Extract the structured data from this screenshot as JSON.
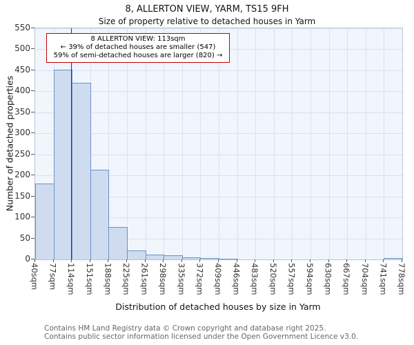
{
  "title": "8, ALLERTON VIEW, YARM, TS15 9FH",
  "subtitle": "Size of property relative to detached houses in Yarm",
  "annotation": {
    "line1": "8 ALLERTON VIEW: 113sqm",
    "line2": "← 39% of detached houses are smaller (547)",
    "line3": "59% of semi-detached houses are larger (820) →"
  },
  "footer": {
    "line1": "Contains HM Land Registry data © Crown copyright and database right 2025.",
    "line2": "Contains public sector information licensed under the Open Government Licence v3.0."
  },
  "chart_data": {
    "type": "bar",
    "title": "8, ALLERTON VIEW, YARM, TS15 9FH — Size of property relative to detached houses in Yarm",
    "xlabel": "Distribution of detached houses by size in Yarm",
    "ylabel": "Number of detached properties",
    "categories": [
      "40sqm",
      "77sqm",
      "114sqm",
      "151sqm",
      "188sqm",
      "225sqm",
      "261sqm",
      "298sqm",
      "335sqm",
      "372sqm",
      "409sqm",
      "446sqm",
      "483sqm",
      "520sqm",
      "557sqm",
      "594sqm",
      "630sqm",
      "667sqm",
      "704sqm",
      "741sqm",
      "778sqm"
    ],
    "values": [
      180,
      452,
      420,
      213,
      78,
      22,
      12,
      10,
      5,
      3,
      2,
      0,
      0,
      0,
      0,
      0,
      0,
      0,
      0,
      3
    ],
    "ylim": [
      0,
      550
    ],
    "ytick_step": 50,
    "xmin_sqm": 40,
    "xmax_sqm": 778,
    "grid": true,
    "legend": "none",
    "bar_fill": "#cfdcf0",
    "bar_border": "#6a8fc8",
    "plot_background": "#f1f5fc",
    "marker": {
      "value_sqm": 113,
      "label": "8 ALLERTON VIEW: 113sqm",
      "color": "#c00000"
    }
  }
}
